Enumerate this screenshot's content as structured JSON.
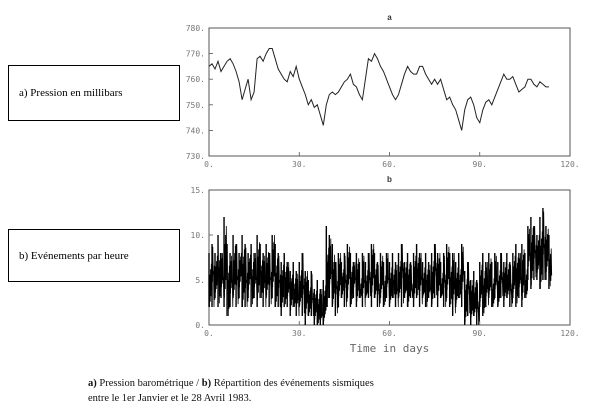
{
  "figure": {
    "label_a": "a) Pression en millibars",
    "label_b": "b) Evénements par heure",
    "caption_line1_bold_a": "a)",
    "caption_line1_text_a": " Pression barométrique / ",
    "caption_line1_bold_b": "b)",
    "caption_line1_text_b": " Répartition des événements sismiques",
    "caption_line2": "entre le 1er Janvier et le 28 Avril 1983."
  },
  "chart_data": [
    {
      "type": "line",
      "title": "a",
      "xlabel": "",
      "ylabel": "",
      "xlim": [
        0,
        120
      ],
      "ylim": [
        730,
        780
      ],
      "x_ticks": [
        0,
        30,
        60,
        90,
        120
      ],
      "x_tick_labels": [
        "0.",
        "30.",
        "60.",
        "90.",
        "120."
      ],
      "y_ticks": [
        730,
        740,
        750,
        760,
        770,
        780
      ],
      "y_tick_labels": [
        "730.",
        "740.",
        "750.",
        "760.",
        "770.",
        "780."
      ],
      "series": [
        {
          "x": [
            0,
            1,
            2,
            3,
            4,
            5,
            6,
            7,
            8,
            9,
            10,
            11,
            12,
            13,
            14,
            15,
            16,
            17,
            18,
            19,
            20,
            21,
            22,
            23,
            24,
            25,
            26,
            27,
            28,
            29,
            30,
            31,
            32,
            33,
            34,
            35,
            36,
            37,
            38,
            39,
            40,
            41,
            42,
            43,
            44,
            45,
            46,
            47,
            48,
            49,
            50,
            51,
            52,
            53,
            54,
            55,
            56,
            57,
            58,
            59,
            60,
            61,
            62,
            63,
            64,
            65,
            66,
            67,
            68,
            69,
            70,
            71,
            72,
            73,
            74,
            75,
            76,
            77,
            78,
            79,
            80,
            81,
            82,
            83,
            84,
            85,
            86,
            87,
            88,
            89,
            90,
            91,
            92,
            93,
            94,
            95,
            96,
            97,
            98,
            99,
            100,
            101,
            102,
            103,
            104,
            105,
            106,
            107,
            108,
            109,
            110,
            111,
            112,
            113
          ],
          "y": [
            765,
            766,
            764,
            767,
            763,
            765,
            767,
            768,
            766,
            763,
            759,
            752,
            756,
            760,
            752,
            755,
            768,
            769,
            767,
            770,
            772,
            772,
            768,
            764,
            762,
            760,
            759,
            763,
            761,
            765,
            760,
            757,
            754,
            750,
            752,
            749,
            750,
            746,
            742,
            750,
            754,
            755,
            754,
            755,
            757,
            759,
            760,
            762,
            758,
            757,
            754,
            752,
            760,
            768,
            767,
            770,
            768,
            765,
            763,
            760,
            757,
            754,
            752,
            754,
            758,
            762,
            765,
            763,
            762,
            762,
            765,
            765,
            762,
            760,
            758,
            760,
            758,
            760,
            756,
            752,
            753,
            750,
            748,
            744,
            740,
            748,
            752,
            753,
            750,
            745,
            743,
            748,
            751,
            752,
            750,
            753,
            756,
            759,
            762,
            760,
            760,
            761,
            758,
            755,
            756,
            757,
            760,
            760,
            758,
            757,
            759,
            758,
            757,
            757
          ]
        }
      ]
    },
    {
      "type": "line",
      "title": "b",
      "xlabel": "Time in days",
      "ylabel": "",
      "xlim": [
        0,
        120
      ],
      "ylim": [
        0,
        15
      ],
      "x_ticks": [
        0,
        30,
        60,
        90,
        120
      ],
      "x_tick_labels": [
        "0.",
        "30.",
        "60.",
        "90.",
        "120."
      ],
      "y_ticks": [
        0,
        5,
        10,
        15
      ],
      "y_tick_labels": [
        "0.",
        "5.",
        "10.",
        "15."
      ],
      "series": [
        {
          "x": [
            0,
            1,
            2,
            3,
            4,
            5,
            6,
            7,
            8,
            9,
            10,
            11,
            12,
            13,
            14,
            15,
            16,
            17,
            18,
            19,
            20,
            21,
            22,
            23,
            24,
            25,
            26,
            27,
            28,
            29,
            30,
            31,
            32,
            33,
            34,
            35,
            36,
            37,
            38,
            39,
            40,
            41,
            42,
            43,
            44,
            45,
            46,
            47,
            48,
            49,
            50,
            51,
            52,
            53,
            54,
            55,
            56,
            57,
            58,
            59,
            60,
            61,
            62,
            63,
            64,
            65,
            66,
            67,
            68,
            69,
            70,
            71,
            72,
            73,
            74,
            75,
            76,
            77,
            78,
            79,
            80,
            81,
            82,
            83,
            84,
            85,
            86,
            87,
            88,
            89,
            90,
            91,
            92,
            93,
            94,
            95,
            96,
            97,
            98,
            99,
            100,
            101,
            102,
            103,
            104,
            105,
            106,
            107,
            108,
            109,
            110,
            111,
            112,
            113
          ],
          "min": [
            2,
            2,
            3,
            2,
            3,
            2,
            1,
            2,
            3,
            2,
            3,
            2,
            2,
            3,
            2,
            3,
            2,
            3,
            2,
            3,
            2,
            3,
            2,
            2,
            1,
            2,
            2,
            1,
            2,
            1,
            2,
            1,
            0,
            1,
            1,
            0,
            0,
            0,
            0,
            2,
            3,
            2,
            1,
            2,
            3,
            2,
            3,
            2,
            3,
            2,
            3,
            2,
            3,
            3,
            2,
            3,
            2,
            3,
            2,
            3,
            2,
            3,
            2,
            3,
            2,
            3,
            2,
            3,
            2,
            3,
            2,
            3,
            2,
            3,
            2,
            3,
            2,
            3,
            2,
            3,
            2,
            1,
            2,
            3,
            2,
            0,
            1,
            0,
            1,
            0,
            2,
            1,
            2,
            3,
            2,
            3,
            2,
            3,
            2,
            3,
            2,
            3,
            2,
            3,
            2,
            3,
            5,
            4,
            5,
            5,
            4,
            5,
            5,
            4
          ],
          "max": [
            8,
            9,
            8,
            10,
            8,
            12,
            9,
            8,
            10,
            9,
            8,
            10,
            9,
            8,
            9,
            8,
            10,
            9,
            8,
            9,
            8,
            10,
            9,
            8,
            7,
            8,
            7,
            6,
            7,
            6,
            7,
            8,
            6,
            5,
            6,
            4,
            5,
            4,
            5,
            11,
            10,
            9,
            7,
            8,
            7,
            8,
            9,
            8,
            7,
            8,
            7,
            8,
            7,
            8,
            9,
            8,
            7,
            8,
            7,
            8,
            7,
            8,
            7,
            8,
            9,
            7,
            8,
            7,
            8,
            9,
            8,
            7,
            8,
            7,
            8,
            9,
            8,
            7,
            8,
            9,
            8,
            8,
            7,
            8,
            9,
            6,
            7,
            5,
            6,
            5,
            7,
            8,
            7,
            8,
            7,
            8,
            7,
            8,
            7,
            8,
            7,
            8,
            9,
            8,
            9,
            8,
            11,
            12,
            11,
            10,
            12,
            13,
            11,
            10
          ],
          "mid": [
            5,
            6,
            5,
            6,
            5,
            7,
            5,
            5,
            6,
            5,
            6,
            6,
            5,
            6,
            5,
            5,
            6,
            6,
            5,
            6,
            5,
            6,
            5,
            5,
            4,
            5,
            4,
            4,
            4,
            3,
            4,
            4,
            3,
            3,
            3,
            2,
            2,
            1,
            2,
            7,
            6,
            5,
            4,
            5,
            5,
            5,
            6,
            5,
            5,
            5,
            4,
            5,
            4,
            5,
            6,
            5,
            4,
            5,
            4,
            5,
            4,
            5,
            4,
            5,
            6,
            4,
            5,
            4,
            5,
            6,
            5,
            4,
            5,
            4,
            5,
            6,
            5,
            4,
            5,
            6,
            5,
            4,
            4,
            5,
            6,
            3,
            4,
            2,
            3,
            2,
            4,
            4,
            4,
            5,
            4,
            5,
            4,
            5,
            4,
            5,
            4,
            5,
            6,
            5,
            6,
            5,
            8,
            8,
            8,
            7,
            8,
            9,
            8,
            7
          ]
        }
      ]
    }
  ]
}
